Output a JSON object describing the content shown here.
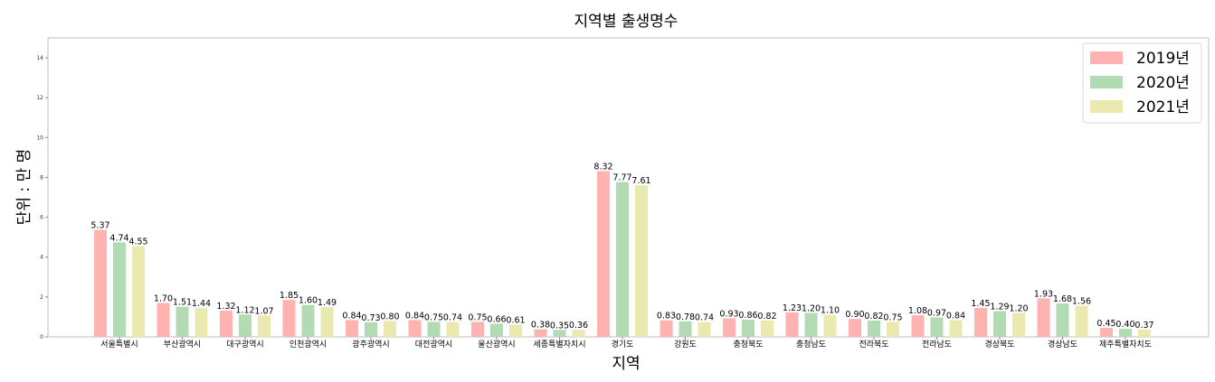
{
  "chart_data": {
    "type": "bar",
    "title": "지역별 출생명수",
    "xlabel": "지역",
    "ylabel": "단위 : 만 명",
    "ylim": [
      0,
      15
    ],
    "yticks": [
      0,
      2,
      4,
      6,
      8,
      10,
      12,
      14
    ],
    "grid": false,
    "legend": "top-right",
    "categories": [
      "서울특별시",
      "부산광역시",
      "대구광역시",
      "인천광역시",
      "광주광역시",
      "대전광역시",
      "울산광역시",
      "세종특별자치시",
      "경기도",
      "강원도",
      "충청북도",
      "충청남도",
      "전라북도",
      "전라남도",
      "경상북도",
      "경상남도",
      "제주특별자치도"
    ],
    "series": [
      {
        "name": "2019년",
        "color": "#ffb3b0",
        "values": [
          5.37,
          1.7,
          1.32,
          1.85,
          0.84,
          0.84,
          0.75,
          0.38,
          8.32,
          0.83,
          0.93,
          1.23,
          0.9,
          1.08,
          1.45,
          1.93,
          0.45
        ],
        "labels": [
          "5.37",
          "1.70",
          "1.32",
          "1.85",
          "0.84",
          "0.84",
          "0.75",
          "0.38",
          "8.32",
          "0.83",
          "0.93",
          "1.23",
          "0.90",
          "1.08",
          "1.45",
          "1.93",
          "0.45"
        ]
      },
      {
        "name": "2020년",
        "color": "#b3dbb3",
        "values": [
          4.74,
          1.51,
          1.12,
          1.6,
          0.73,
          0.75,
          0.66,
          0.35,
          7.77,
          0.78,
          0.86,
          1.2,
          0.82,
          0.97,
          1.29,
          1.68,
          0.4
        ],
        "labels": [
          "4.74",
          "1.51",
          "1.12",
          "1.60",
          "0.73",
          "0.75",
          "0.66",
          "0.35",
          "7.77",
          "0.78",
          "0.86",
          "1.20",
          "0.82",
          "0.97",
          "1.29",
          "1.68",
          "0.40"
        ]
      },
      {
        "name": "2021년",
        "color": "#eaeab0",
        "values": [
          4.55,
          1.44,
          1.07,
          1.49,
          0.8,
          0.74,
          0.61,
          0.36,
          7.61,
          0.74,
          0.82,
          1.1,
          0.75,
          0.84,
          1.2,
          1.56,
          0.37
        ],
        "labels": [
          "4.55",
          "1.44",
          "1.07",
          "1.49",
          "0.80",
          "0.74",
          "0.61",
          "0.36",
          "7.61",
          "0.74",
          "0.82",
          "1.10",
          "0.75",
          "0.84",
          "1.20",
          "1.56",
          "0.37"
        ]
      }
    ]
  }
}
